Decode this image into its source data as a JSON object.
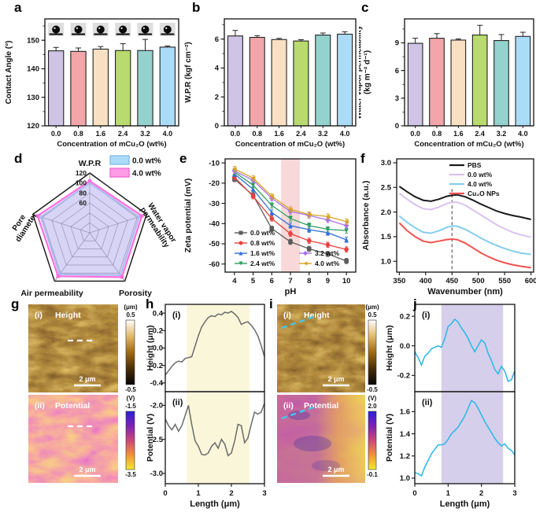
{
  "figure": {
    "background": "#ffffff",
    "panels": {
      "a": {
        "letter": "a"
      },
      "b": {
        "letter": "b"
      },
      "c": {
        "letter": "c"
      },
      "d": {
        "letter": "d"
      },
      "e": {
        "letter": "e"
      },
      "f": {
        "letter": "f"
      },
      "g": {
        "letter": "g"
      },
      "h": {
        "letter": "h"
      },
      "i": {
        "letter": "i"
      },
      "j": {
        "letter": "j"
      }
    }
  },
  "chart_data": [
    {
      "panel": "a",
      "type": "bar",
      "xlabel": "Concentration of mCu₂O (wt%)",
      "ylabel": "Contact Angle (°)",
      "categories": [
        "0.0",
        "0.8",
        "1.6",
        "2.4",
        "3.2",
        "4.0"
      ],
      "values": [
        146.3,
        146.1,
        146.9,
        146.4,
        146.4,
        147.6
      ],
      "errors": [
        1.2,
        1.2,
        0.9,
        2.4,
        3.9,
        0.4
      ],
      "bar_colors": [
        "#cfc3e6",
        "#f2a6aa",
        "#f9e0c2",
        "#b8da6e",
        "#94d2cd",
        "#abdcf7"
      ],
      "ylim": [
        120,
        157.5
      ],
      "yticks": [
        120,
        130,
        140,
        150
      ],
      "yminor_step": 5,
      "droplet_icon": true,
      "annotation": "water-droplet photo above each bar"
    },
    {
      "panel": "b",
      "type": "bar",
      "xlabel": "Concentration of mCu₂O (wt%)",
      "ylabel": "W.P.R (kgf cm⁻²)",
      "categories": [
        "0.0",
        "0.8",
        "1.6",
        "2.4",
        "3.2",
        "4.0"
      ],
      "values": [
        6.22,
        6.12,
        5.97,
        5.87,
        6.28,
        6.34
      ],
      "errors": [
        0.38,
        0.12,
        0.08,
        0.09,
        0.14,
        0.17
      ],
      "bar_colors": [
        "#cfc3e6",
        "#f2a6aa",
        "#f9e0c2",
        "#b8da6e",
        "#94d2cd",
        "#abdcf7"
      ],
      "ylim": [
        0,
        7.4
      ],
      "yticks": [
        0,
        2,
        4,
        6
      ],
      "yminor_step": 1
    },
    {
      "panel": "c",
      "type": "bar",
      "xlabel": "Concentration of mCu₂O (wt%)",
      "ylabel": "Water vapor permeability\n(kg m⁻² d⁻¹)",
      "categories": [
        "0.0",
        "0.8",
        "1.6",
        "2.4",
        "3.2",
        "4.0"
      ],
      "values": [
        8.95,
        9.5,
        9.3,
        9.85,
        9.25,
        9.7
      ],
      "errors": [
        0.55,
        0.5,
        0.12,
        1.05,
        0.65,
        0.45
      ],
      "bar_colors": [
        "#cfc3e6",
        "#f2a6aa",
        "#f9e0c2",
        "#b8da6e",
        "#94d2cd",
        "#abdcf7"
      ],
      "ylim": [
        0,
        11.6
      ],
      "yticks": [
        0,
        3,
        6,
        9
      ],
      "yminor_step": 1.5
    },
    {
      "panel": "d",
      "type": "radar",
      "axes": [
        "W.P.R",
        "Water vapor permeability",
        "Porosity",
        "Air permeability",
        "Pore diameter"
      ],
      "axes_display": [
        "W.P.R",
        "Water vapor|permeability",
        "Porosity",
        "Air permeability",
        "Pore|diameter"
      ],
      "max": 120,
      "rings": [
        20,
        40,
        60,
        80,
        100,
        120
      ],
      "ring_ticks": [
        60,
        80,
        100,
        120
      ],
      "series": [
        {
          "name": "0.0 wt%",
          "stroke": "#9ec9ef",
          "fill": "rgba(150,195,240,0.45)",
          "values": [
            100,
            104,
            105,
            103,
            103
          ]
        },
        {
          "name": "4.0 wt%",
          "stroke": "#ff6ee0",
          "fill": "rgba(255,120,230,0.15)",
          "values": [
            104,
            110,
            110,
            108,
            110
          ]
        }
      ],
      "legend": [
        {
          "label": "0.0 wt%",
          "swatch": "#aadcf7",
          "border": "#78b8e8"
        },
        {
          "label": "4.0 wt%",
          "swatch": "#ff9ce8",
          "border": "#f060d0"
        }
      ]
    },
    {
      "panel": "e",
      "type": "line",
      "xlabel": "pH",
      "ylabel": "Zeta potential (mV)",
      "x": [
        4,
        5,
        6,
        7,
        8,
        9,
        10
      ],
      "xlim": [
        3.5,
        10.5
      ],
      "ylim": [
        -64,
        -8
      ],
      "yticks": [
        -10,
        -20,
        -30,
        -40,
        -50,
        -60
      ],
      "band": {
        "x0": 6.5,
        "x1": 7.5,
        "color": "#f8d8d8"
      },
      "point_error": 1.3,
      "series": [
        {
          "name": "0.0 wt%",
          "color": "#5b5b5b",
          "marker": "square",
          "values": [
            -18,
            -26,
            -42.5,
            -49,
            -52.5,
            -55,
            -58.5
          ]
        },
        {
          "name": "0.8 wt%",
          "color": "#e8403c",
          "marker": "circle",
          "values": [
            -17,
            -26.5,
            -37.5,
            -45,
            -48.5,
            -50.5,
            -52.8
          ]
        },
        {
          "name": "1.6 wt%",
          "color": "#2f6fd6",
          "marker": "triangle-up",
          "values": [
            -15.5,
            -23,
            -34.5,
            -41,
            -43,
            -44.5,
            -48
          ]
        },
        {
          "name": "2.4 wt%",
          "color": "#2d9e5f",
          "marker": "triangle-down",
          "values": [
            -14.5,
            -21,
            -31,
            -37.5,
            -41,
            -42.8,
            -43.5
          ]
        },
        {
          "name": "3.2 wt%",
          "color": "#a873e8",
          "marker": "diamond",
          "values": [
            -14,
            -18.5,
            -27.5,
            -34,
            -36,
            -38.2,
            -41
          ]
        },
        {
          "name": "4.0 wt%",
          "color": "#d8a321",
          "marker": "triangle-left",
          "values": [
            -13,
            -17.5,
            -26.5,
            -33,
            -35.5,
            -36.5,
            -39
          ]
        }
      ],
      "legend_pos": "in-bl"
    },
    {
      "panel": "f",
      "type": "line",
      "xlabel": "Wavenumber (nm)",
      "ylabel": "Absorbance (a.u.)",
      "x": [
        350,
        365,
        380,
        395,
        410,
        425,
        440,
        450,
        460,
        475,
        490,
        505,
        520,
        535,
        550,
        565,
        580,
        600
      ],
      "xticks": [
        350,
        400,
        450,
        500,
        550,
        600
      ],
      "xlim": [
        345,
        605
      ],
      "ylim": [
        0.78,
        3.08
      ],
      "yticks": [
        1.0,
        1.5,
        2.0,
        2.5,
        3.0
      ],
      "ytick_labels": [
        "1.0",
        "1.5",
        "2.0",
        "2.5",
        "3.0"
      ],
      "dashed_vline": 450,
      "series": [
        {
          "name": "PBS",
          "color": "#1a1a1a",
          "values": [
            2.52,
            2.41,
            2.31,
            2.24,
            2.22,
            2.26,
            2.32,
            2.34,
            2.35,
            2.31,
            2.24,
            2.16,
            2.09,
            2.02,
            1.97,
            1.93,
            1.9,
            1.85
          ]
        },
        {
          "name": "0.0 wt%",
          "color": "#d9c2f0",
          "values": [
            2.38,
            2.26,
            2.15,
            2.07,
            2.05,
            2.1,
            2.17,
            2.2,
            2.2,
            2.14,
            2.04,
            1.94,
            1.84,
            1.74,
            1.66,
            1.59,
            1.54,
            1.49
          ]
        },
        {
          "name": "4.0 wt%",
          "color": "#85cdf0",
          "values": [
            1.92,
            1.79,
            1.68,
            1.59,
            1.57,
            1.62,
            1.69,
            1.72,
            1.71,
            1.65,
            1.56,
            1.47,
            1.39,
            1.32,
            1.26,
            1.21,
            1.17,
            1.14
          ]
        },
        {
          "name": "Cu₂O NPs",
          "color": "#f0524e",
          "values": [
            1.78,
            1.62,
            1.5,
            1.41,
            1.38,
            1.41,
            1.44,
            1.45,
            1.44,
            1.37,
            1.27,
            1.17,
            1.09,
            1.02,
            0.97,
            0.93,
            0.9,
            0.87
          ]
        }
      ],
      "legend_pos": "tr"
    },
    {
      "panel": "h",
      "type": "profile",
      "xlabel": "Length (μm)",
      "x_max": 3,
      "xticks": [
        0,
        1,
        2,
        3
      ],
      "line_color": "#6b6b6b",
      "band": {
        "x0": 0.65,
        "x1": 2.55,
        "color": "#faf6da"
      },
      "subplots": [
        {
          "label": "(i)",
          "ylabel": "Height (μm)",
          "ylim": [
            -0.5,
            0.5
          ],
          "yticks": [
            0.4,
            0.2,
            0.0,
            -0.2,
            -0.4
          ],
          "ytick_labels": [
            "0.4",
            "0.2",
            "0.0",
            "-0.2",
            "-0.4"
          ],
          "y": [
            -0.31,
            -0.26,
            -0.21,
            -0.17,
            -0.15,
            -0.16,
            -0.12,
            -0.11,
            -0.1,
            0.02,
            0.14,
            0.24,
            0.3,
            0.35,
            0.37,
            0.36,
            0.39,
            0.38,
            0.41,
            0.4,
            0.42,
            0.39,
            0.35,
            0.27,
            0.29,
            0.3,
            0.26,
            0.21,
            0.14,
            0.03,
            -0.1
          ]
        },
        {
          "label": "(ii)",
          "ylabel": "Potential (V)",
          "ylim": [
            -3.15,
            -1.8
          ],
          "yticks": [
            -2.0,
            -2.5,
            -3.0
          ],
          "ytick_labels": [
            "-2.0",
            "-2.5",
            "-3.0"
          ],
          "y": [
            -2.2,
            -2.3,
            -2.36,
            -2.28,
            -2.38,
            -2.3,
            -2.15,
            -2.0,
            -2.28,
            -2.52,
            -2.6,
            -2.72,
            -2.73,
            -2.7,
            -2.6,
            -2.55,
            -2.63,
            -2.5,
            -2.57,
            -2.74,
            -2.7,
            -2.52,
            -2.28,
            -2.3,
            -2.55,
            -2.48,
            -2.28,
            -2.1,
            -2.13,
            -2.1,
            -1.97
          ]
        }
      ]
    },
    {
      "panel": "j",
      "type": "profile",
      "xlabel": "Length (μm)",
      "x_max": 3,
      "xticks": [
        0,
        1,
        2,
        3
      ],
      "line_color": "#29b7e8",
      "band": {
        "x0": 0.8,
        "x1": 2.65,
        "color": "#d5cfeb"
      },
      "subplots": [
        {
          "label": "(i)",
          "ylabel": "Height (μm)",
          "ylim": [
            -0.31,
            0.28
          ],
          "yticks": [
            0.2,
            0.0,
            -0.2
          ],
          "ytick_labels": [
            "0.2",
            "0.0",
            "-0.2"
          ],
          "y": [
            -0.04,
            -0.08,
            -0.13,
            -0.07,
            -0.05,
            -0.02,
            -0.01,
            0.0,
            -0.01,
            0.05,
            0.13,
            0.15,
            0.18,
            0.16,
            0.12,
            0.09,
            0.05,
            0.0,
            -0.04,
            0.0,
            0.04,
            0.02,
            -0.05,
            -0.1,
            -0.16,
            -0.19,
            -0.14,
            -0.17,
            -0.24,
            -0.23,
            -0.17
          ]
        },
        {
          "label": "(ii)",
          "ylabel": "Potential (V)",
          "ylim": [
            0.95,
            1.78
          ],
          "yticks": [
            1.0,
            1.2,
            1.4,
            1.6
          ],
          "ytick_labels": [
            "1.0",
            "1.2",
            "1.4",
            "1.6"
          ],
          "y": [
            1.05,
            1.04,
            1.02,
            1.1,
            1.16,
            1.22,
            1.26,
            1.3,
            1.3,
            1.31,
            1.35,
            1.4,
            1.43,
            1.46,
            1.51,
            1.56,
            1.63,
            1.7,
            1.68,
            1.63,
            1.57,
            1.51,
            1.46,
            1.41,
            1.36,
            1.32,
            1.29,
            1.31,
            1.27,
            1.25,
            1.21
          ]
        }
      ]
    }
  ],
  "afm_panels": {
    "g": {
      "images": [
        {
          "label": "(i)",
          "title": "Height",
          "palette": "gold",
          "marker": "white-dash",
          "scalebar": "2 μm",
          "cbar_unit": "(μm)",
          "cbar_top": "0.5",
          "cbar_bottom": "-0.5"
        },
        {
          "label": "(ii)",
          "title": "Potential",
          "palette": "plasma",
          "marker": "white-dash",
          "scalebar": "2 μm",
          "cbar_unit": "(V)",
          "cbar_top": "-1.5",
          "cbar_bottom": "-3.5"
        }
      ]
    },
    "i": {
      "images": [
        {
          "label": "(i)",
          "title": "Height",
          "palette": "gold",
          "marker": "cyan-dash",
          "scalebar": "2 μm",
          "cbar_unit": "(μm)",
          "cbar_top": "0.5",
          "cbar_bottom": "-0.5"
        },
        {
          "label": "(ii)",
          "title": "Potential",
          "palette": "plasma-smooth",
          "marker": "cyan-dash",
          "scalebar": "2 μm",
          "cbar_unit": "(V)",
          "cbar_top": "2.0",
          "cbar_bottom": "-0.1"
        }
      ]
    }
  }
}
